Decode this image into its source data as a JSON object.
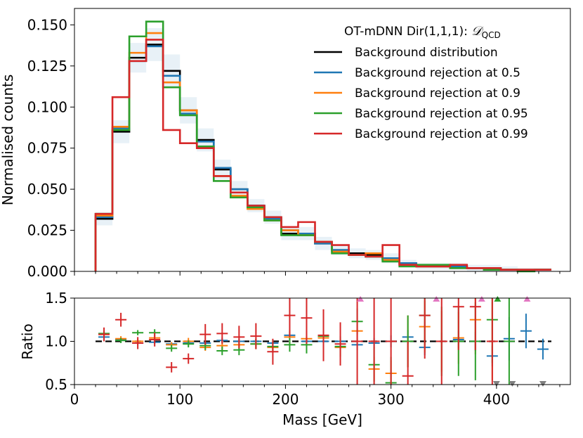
{
  "chart_data": [
    {
      "type": "line",
      "subtype": "step-histogram",
      "xlabel": "",
      "ylabel": "Normalised counts",
      "xlim": [
        0,
        470
      ],
      "ylim": [
        0,
        0.16
      ],
      "yticks": [
        0.0,
        0.025,
        0.05,
        0.075,
        0.1,
        0.125,
        0.15
      ],
      "ytick_labels": [
        "0.000",
        "0.025",
        "0.050",
        "0.075",
        "0.100",
        "0.125",
        "0.150"
      ],
      "legend_title_prefix": "OT-mDNN Dir(1,1,1): ",
      "legend_title_math": "𝒟",
      "legend_title_sub": "QCD",
      "legend_position": "top-right",
      "bin_edges": [
        20,
        36,
        52,
        68,
        84,
        100,
        116,
        132,
        148,
        164,
        180,
        196,
        212,
        228,
        244,
        260,
        276,
        292,
        308,
        324,
        340,
        356,
        372,
        388,
        404,
        420,
        436,
        452
      ],
      "uncertainty_band": [
        0.004,
        0.007,
        0.009,
        0.01,
        0.01,
        0.008,
        0.007,
        0.006,
        0.005,
        0.004,
        0.004,
        0.004,
        0.004,
        0.004,
        0.003,
        0.003,
        0.003,
        0.003,
        0.002,
        0.002,
        0.002,
        0.002,
        0.002,
        0.002,
        0.002,
        0.001,
        0.001
      ],
      "series": [
        {
          "name": "Background distribution",
          "color": "#000000",
          "values": [
            0.032,
            0.085,
            0.13,
            0.138,
            0.122,
            0.098,
            0.08,
            0.062,
            0.05,
            0.04,
            0.033,
            0.023,
            0.023,
            0.017,
            0.013,
            0.011,
            0.01,
            0.008,
            0.005,
            0.003,
            0.003,
            0.003,
            0.002,
            0.002,
            0.001,
            0.001,
            0.001
          ]
        },
        {
          "name": "Background rejection at 0.5",
          "color": "#1f77b4",
          "values": [
            0.033,
            0.087,
            0.128,
            0.137,
            0.119,
            0.096,
            0.079,
            0.063,
            0.05,
            0.04,
            0.032,
            0.025,
            0.023,
            0.017,
            0.013,
            0.01,
            0.009,
            0.008,
            0.005,
            0.003,
            0.003,
            0.003,
            0.002,
            0.002,
            0.001,
            0.001,
            0.001
          ]
        },
        {
          "name": "Background rejection at 0.9",
          "color": "#ff7f0e",
          "values": [
            0.034,
            0.088,
            0.133,
            0.145,
            0.115,
            0.098,
            0.076,
            0.058,
            0.046,
            0.038,
            0.031,
            0.025,
            0.022,
            0.018,
            0.012,
            0.01,
            0.011,
            0.007,
            0.004,
            0.003,
            0.003,
            0.002,
            0.002,
            0.002,
            0.001,
            0.001,
            0.001
          ]
        },
        {
          "name": "Background rejection at 0.95",
          "color": "#2ca02c",
          "values": [
            0.035,
            0.086,
            0.143,
            0.152,
            0.112,
            0.095,
            0.076,
            0.055,
            0.045,
            0.039,
            0.031,
            0.022,
            0.022,
            0.018,
            0.011,
            0.01,
            0.009,
            0.006,
            0.003,
            0.004,
            0.004,
            0.002,
            0.002,
            0.001,
            0.001,
            0.0,
            0.001
          ]
        },
        {
          "name": "Background rejection at 0.99",
          "color": "#d62728",
          "values": [
            0.035,
            0.106,
            0.128,
            0.141,
            0.086,
            0.078,
            0.075,
            0.058,
            0.048,
            0.04,
            0.033,
            0.027,
            0.03,
            0.018,
            0.016,
            0.01,
            0.009,
            0.016,
            0.004,
            0.003,
            0.003,
            0.004,
            0.002,
            0.002,
            0.001,
            0.001,
            0.001
          ]
        }
      ]
    },
    {
      "type": "scatter",
      "subtype": "ratio-with-errorbars",
      "xlabel": "Mass [GeV]",
      "ylabel": "Ratio",
      "xlim": [
        0,
        470
      ],
      "ylim": [
        0.5,
        1.5
      ],
      "yticks": [
        0.5,
        1.0,
        1.5
      ],
      "ytick_labels": [
        "0.5",
        "1.0",
        "1.5"
      ],
      "xticks": [
        0,
        100,
        200,
        300,
        400
      ],
      "xtick_labels": [
        "0",
        "100",
        "200",
        "300",
        "400"
      ],
      "reference_line": 1.0,
      "series": [
        {
          "name": "Background rejection at 0.5",
          "color": "#1f77b4",
          "x": [
            28,
            44,
            60,
            76,
            92,
            108,
            124,
            140,
            156,
            172,
            188,
            204,
            220,
            236,
            252,
            268,
            284,
            300,
            316,
            332,
            348,
            364,
            380,
            396,
            412,
            428,
            444
          ],
          "y": [
            1.05,
            1.02,
            0.98,
            0.99,
            0.97,
            0.98,
            0.98,
            1.01,
            1.0,
            1.0,
            0.98,
            1.07,
            1.0,
            1.0,
            1.0,
            0.96,
            0.98,
            1.0,
            1.05,
            0.93,
            1.0,
            1.02,
            1.0,
            0.83,
            1.03,
            1.12,
            0.91
          ],
          "err": [
            0.02,
            0.02,
            0.02,
            0.02,
            0.02,
            0.02,
            0.02,
            0.03,
            0.03,
            0.03,
            0.03,
            0.04,
            0.04,
            0.05,
            0.05,
            0.06,
            0.06,
            0.07,
            0.08,
            0.09,
            0.1,
            0.1,
            0.11,
            0.12,
            0.25,
            0.2,
            0.12
          ]
        },
        {
          "name": "Background rejection at 0.9",
          "color": "#ff7f0e",
          "x": [
            28,
            44,
            60,
            76,
            92,
            108,
            124,
            140,
            156,
            172,
            188,
            204,
            220,
            236,
            252,
            268,
            284,
            300,
            316,
            332,
            348,
            364,
            380,
            396
          ],
          "y": [
            1.08,
            1.03,
            1.0,
            1.04,
            0.96,
            1.0,
            0.93,
            0.95,
            0.96,
            0.97,
            0.93,
            1.05,
            1.03,
            1.04,
            0.93,
            1.12,
            0.68,
            0.63,
            1.0,
            1.17,
            1.0,
            1.04,
            1.25,
            1.0
          ],
          "err": [
            0.03,
            0.03,
            0.03,
            0.03,
            0.03,
            0.04,
            0.04,
            0.05,
            0.05,
            0.06,
            0.06,
            0.08,
            0.09,
            0.1,
            0.1,
            0.12,
            0.14,
            0.15,
            0.3,
            0.3,
            0.35,
            0.3,
            0.4,
            0.45
          ]
        },
        {
          "name": "Background rejection at 0.95",
          "color": "#2ca02c",
          "x": [
            28,
            44,
            60,
            76,
            92,
            108,
            124,
            140,
            156,
            172,
            188,
            204,
            220,
            236,
            252,
            268,
            284,
            300,
            316,
            332,
            348,
            364,
            380,
            396,
            412
          ],
          "y": [
            1.09,
            1.01,
            1.1,
            1.1,
            0.92,
            0.97,
            0.95,
            0.89,
            0.9,
            0.97,
            0.94,
            0.96,
            0.96,
            1.06,
            0.94,
            1.23,
            0.73,
            0.52,
            1.0,
            1.3,
            1.0,
            1.0,
            1.0,
            1.25,
            1.0
          ],
          "err": [
            0.03,
            0.03,
            0.03,
            0.04,
            0.04,
            0.04,
            0.05,
            0.05,
            0.06,
            0.06,
            0.07,
            0.08,
            0.1,
            0.12,
            0.12,
            0.15,
            0.2,
            0.3,
            0.3,
            0.35,
            0.4,
            0.4,
            0.45,
            0.5,
            0.5
          ]
        },
        {
          "name": "Background rejection at 0.99",
          "color": "#d62728",
          "x": [
            28,
            44,
            60,
            76,
            92,
            108,
            124,
            140,
            156,
            172,
            188,
            204,
            220,
            236,
            252,
            268,
            284,
            300,
            316,
            332,
            348,
            364,
            380,
            396
          ],
          "y": [
            1.08,
            1.25,
            0.98,
            1.02,
            0.7,
            0.8,
            1.08,
            1.09,
            1.05,
            1.06,
            0.88,
            1.3,
            1.27,
            1.07,
            0.97,
            1.0,
            1.0,
            1.0,
            0.6,
            1.3,
            1.0,
            1.4,
            1.4,
            1.0
          ],
          "err": [
            0.08,
            0.08,
            0.07,
            0.08,
            0.06,
            0.06,
            0.12,
            0.12,
            0.13,
            0.15,
            0.15,
            0.25,
            0.3,
            0.3,
            0.25,
            0.5,
            0.5,
            0.6,
            0.4,
            0.5,
            0.6,
            0.5,
            0.5,
            0.5
          ]
        }
      ],
      "overflow_markers": [
        {
          "x": 271,
          "dir": "up",
          "color": "#e377c2"
        },
        {
          "x": 343,
          "dir": "up",
          "color": "#e377c2"
        },
        {
          "x": 386,
          "dir": "up",
          "color": "#e377c2"
        },
        {
          "x": 401,
          "dir": "up",
          "color": "#2ca02c"
        },
        {
          "x": 429,
          "dir": "up",
          "color": "#e377c2"
        },
        {
          "x": 400,
          "dir": "down",
          "color": "#7f7f7f"
        },
        {
          "x": 415,
          "dir": "down",
          "color": "#7f7f7f"
        },
        {
          "x": 444,
          "dir": "down",
          "color": "#7f7f7f"
        }
      ]
    }
  ]
}
